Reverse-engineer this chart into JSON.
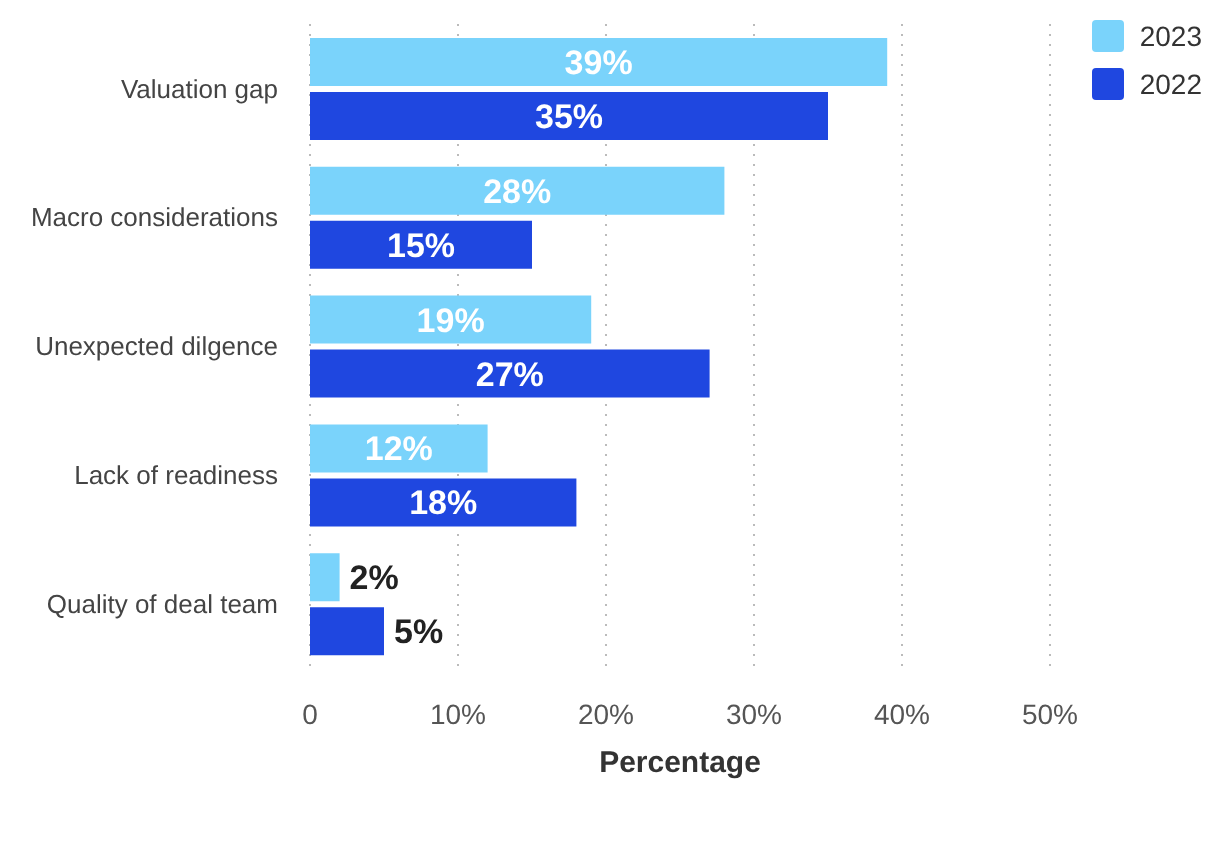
{
  "chart_data": {
    "type": "bar",
    "orientation": "horizontal",
    "xlabel": "Percentage",
    "categories": [
      "Valuation gap",
      "Macro considerations",
      "Unexpected dilgence",
      "Lack of readiness",
      "Quality of deal team"
    ],
    "series": [
      {
        "name": "2023",
        "color": "#7ad3fb",
        "values": [
          39,
          28,
          19,
          12,
          2
        ],
        "value_labels": [
          "39%",
          "28%",
          "19%",
          "12%",
          "2%"
        ]
      },
      {
        "name": "2022",
        "color": "#1f47e0",
        "values": [
          35,
          15,
          27,
          18,
          5
        ],
        "value_labels": [
          "35%",
          "15%",
          "27%",
          "18%",
          "5%"
        ]
      }
    ],
    "xlim": [
      0,
      50
    ],
    "xticks": [
      {
        "value": 0,
        "label": "0"
      },
      {
        "value": 10,
        "label": "10%"
      },
      {
        "value": 20,
        "label": "20%"
      },
      {
        "value": 30,
        "label": "30%"
      },
      {
        "value": 40,
        "label": "40%"
      },
      {
        "value": 50,
        "label": "50%"
      }
    ],
    "grid": "x",
    "legend": "top right"
  }
}
